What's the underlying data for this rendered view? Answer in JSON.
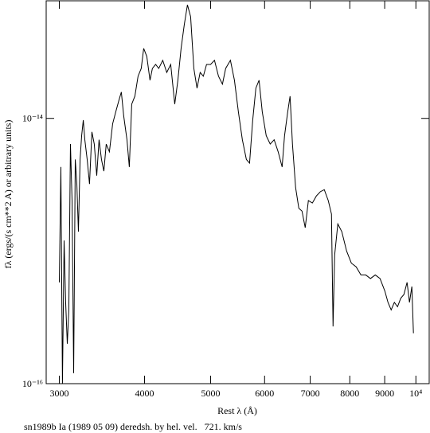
{
  "chart_data": {
    "type": "line",
    "x_label": "Rest λ (Å)",
    "y_label": "fλ (ergs/(s cm**2 A) or arbitrary units)",
    "caption": "sn1989b Ia (1989 05 09) deredsh. by hel. vel.   721. km/s",
    "xscale": "log",
    "yscale": "log",
    "color": "#000000",
    "xlim": [
      2870,
      10460
    ],
    "ylim": [
      1e-16,
      7.7e-14
    ],
    "xticks": [
      3000,
      4000,
      5000,
      6000,
      7000,
      8000,
      9000,
      {
        "value": 10000,
        "label": "10⁴"
      }
    ],
    "yticks": [
      {
        "value": 1e-16,
        "label": "10⁻¹⁶"
      },
      {
        "value": 1e-14,
        "label": "10⁻¹⁴"
      }
    ],
    "x": [
      3000,
      3016,
      3032,
      3049,
      3065,
      3082,
      3098,
      3115,
      3132,
      3149,
      3166,
      3183,
      3200,
      3218,
      3235,
      3253,
      3270,
      3296,
      3322,
      3349,
      3376,
      3404,
      3431,
      3459,
      3487,
      3515,
      3553,
      3592,
      3630,
      3669,
      3699,
      3729,
      3770,
      3800,
      3831,
      3872,
      3914,
      3956,
      3989,
      4031,
      4075,
      4108,
      4153,
      4197,
      4254,
      4312,
      4370,
      4430,
      4477,
      4526,
      4575,
      4624,
      4674,
      4725,
      4776,
      4827,
      4879,
      4932,
      4999,
      5066,
      5135,
      5204,
      5261,
      5346,
      5419,
      5492,
      5566,
      5642,
      5703,
      5764,
      5826,
      5889,
      5953,
      6033,
      6115,
      6197,
      6281,
      6366,
      6418,
      6487,
      6539,
      6592,
      6663,
      6735,
      6808,
      6882,
      6956,
      7050,
      7146,
      7242,
      7340,
      7439,
      7520,
      7560,
      7601,
      7683,
      7787,
      7914,
      8042,
      8173,
      8306,
      8441,
      8578,
      8718,
      8860,
      9004,
      9101,
      9199,
      9299,
      9399,
      9501,
      9604,
      9707,
      9786,
      9865,
      9918
    ],
    "values": [
      5.8e-16,
      4.3e-15,
      1e-16,
      1.2e-15,
      4.1e-16,
      2e-16,
      3.6e-16,
      6.4e-15,
      2.4e-15,
      1.2e-16,
      4.9e-15,
      3.2e-15,
      1.4e-15,
      4.9e-15,
      7.4e-15,
      9.7e-15,
      6.9e-15,
      4.9e-15,
      3.2e-15,
      7.9e-15,
      6.4e-15,
      3.7e-15,
      6.9e-15,
      4.9e-15,
      4e-15,
      6.4e-15,
      5.6e-15,
      9.1e-15,
      1.12e-14,
      1.37e-14,
      1.58e-14,
      1.04e-14,
      6.9e-15,
      4.3e-15,
      1.28e-14,
      1.47e-14,
      2.08e-14,
      2.38e-14,
      3.37e-14,
      2.93e-14,
      1.94e-14,
      2.38e-14,
      2.55e-14,
      2.38e-14,
      2.74e-14,
      2.22e-14,
      2.55e-14,
      1.28e-14,
      1.94e-14,
      3.37e-14,
      5.09e-14,
      7.18e-14,
      5.84e-14,
      2.38e-14,
      1.69e-14,
      2.22e-14,
      2.08e-14,
      2.55e-14,
      2.55e-14,
      2.74e-14,
      2.08e-14,
      1.81e-14,
      2.38e-14,
      2.74e-14,
      1.94e-14,
      1.12e-14,
      6.9e-15,
      4.9e-15,
      4.6e-15,
      9.7e-15,
      1.69e-14,
      1.94e-14,
      1.12e-14,
      7.4e-15,
      6.4e-15,
      6.9e-15,
      5.6e-15,
      4.3e-15,
      7.4e-15,
      1.12e-14,
      1.47e-14,
      6.4e-15,
      3e-15,
      2.1e-15,
      2e-15,
      1.5e-15,
      2.4e-15,
      2.3e-15,
      2.6e-15,
      2.8e-15,
      2.9e-15,
      2.4e-15,
      1.9e-15,
      2.7e-16,
      9.3e-16,
      1.6e-15,
      1.4e-15,
      1e-15,
      8.1e-16,
      7.6e-16,
      6.6e-16,
      6.6e-16,
      6.2e-16,
      6.6e-16,
      6.2e-16,
      5e-16,
      4.1e-16,
      3.6e-16,
      4.1e-16,
      3.8e-16,
      4.4e-16,
      4.7e-16,
      5.8e-16,
      4.1e-16,
      5.4e-16,
      2.4e-16
    ]
  }
}
